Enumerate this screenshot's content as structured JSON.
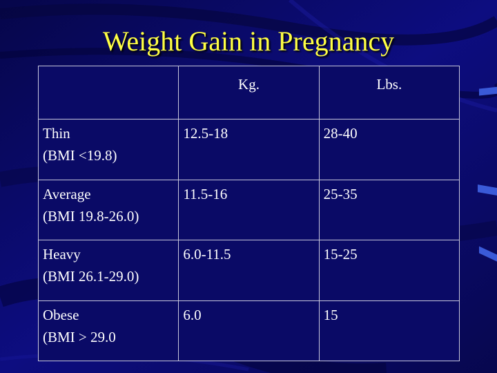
{
  "slide": {
    "title": "Weight Gain in Pregnancy",
    "background_color": "#0a0a6e",
    "title_color": "#ffff44"
  },
  "table": {
    "headers": [
      "",
      "Kg.",
      "Lbs."
    ],
    "rows": [
      {
        "category": "Thin",
        "bmi": "(BMI <19.8)",
        "kg": "12.5-18",
        "lbs": "28-40"
      },
      {
        "category": "Average",
        "bmi": "(BMI 19.8-26.0)",
        "kg": "11.5-16",
        "lbs": "25-35"
      },
      {
        "category": "Heavy",
        "bmi": "(BMI 26.1-29.0)",
        "kg": "6.0-11.5",
        "lbs": "15-25"
      },
      {
        "category": "Obese",
        "bmi": "(BMI > 29.0",
        "kg": "6.0",
        "lbs": "15"
      }
    ]
  }
}
